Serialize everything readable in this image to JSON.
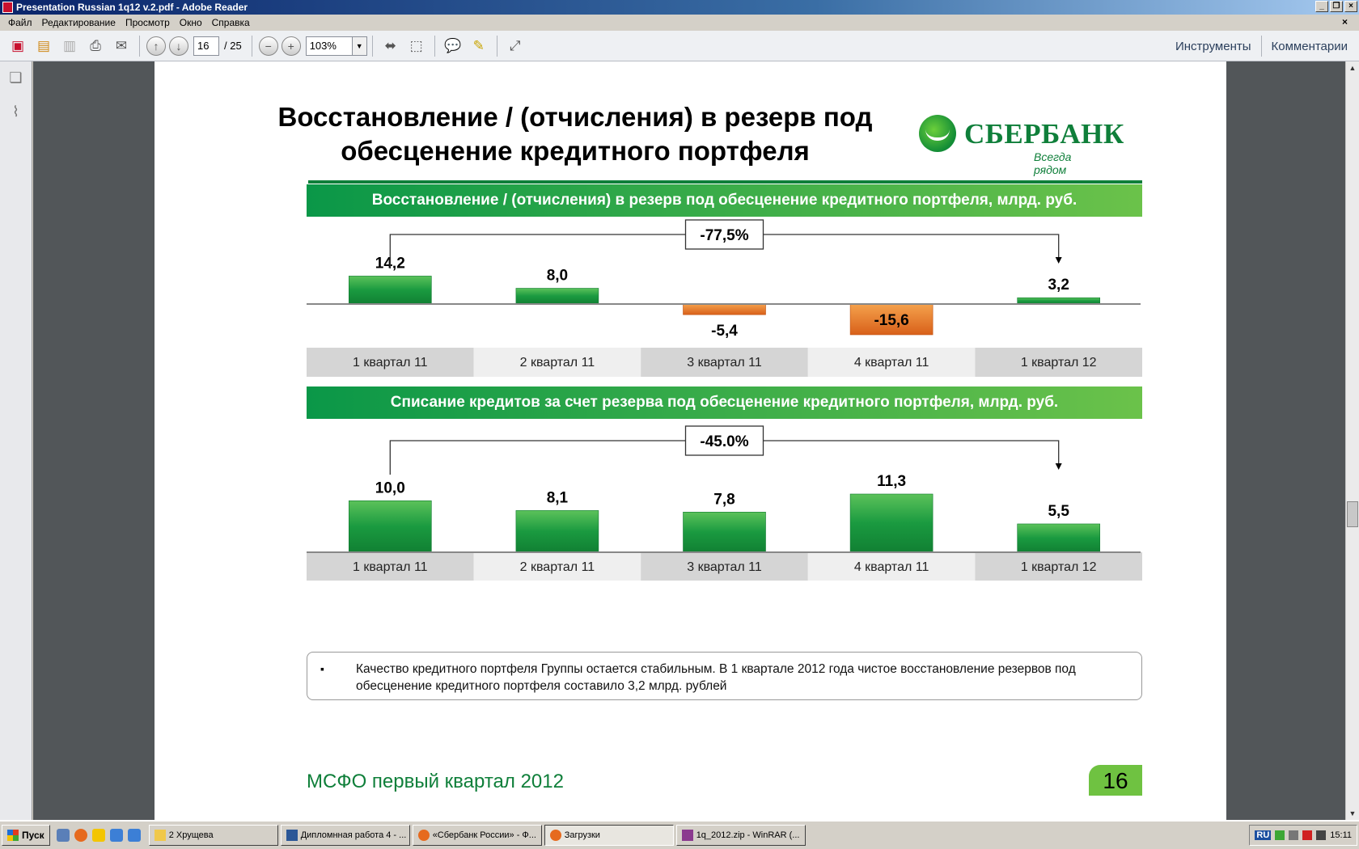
{
  "window": {
    "title": "Presentation Russian 1q12 v.2.pdf - Adobe Reader"
  },
  "menu": {
    "items": [
      "Файл",
      "Редактирование",
      "Просмотр",
      "Окно",
      "Справка"
    ]
  },
  "toolbar": {
    "page_current": "16",
    "page_total": "/ 25",
    "zoom": "103%",
    "tools_label": "Инструменты",
    "comments_label": "Комментарии"
  },
  "slide": {
    "title_line1": "Восстановление / (отчисления) в резерв под",
    "title_line2": "обесценение  кредитного портфеля",
    "logo_name": "СБЕРБАНК",
    "logo_tagline": "Всегда рядом",
    "footer": "МСФО первый квартал 2012",
    "page_number": "16",
    "note_bullet": "▪",
    "note_text": "Качество кредитного портфеля Группы остается стабильным. В 1 квартале 2012 года чистое восстановление резервов под обесценение кредитного портфеля составило 3,2 млрд. рублей",
    "colors": {
      "positive": "#1a9a40",
      "negative": "#e8782a",
      "brand": "#0f7f3a"
    }
  },
  "chart_data": [
    {
      "type": "bar",
      "title": "Восстановление / (отчисления) в резерв под обесценение кредитного портфеля, млрд. руб.",
      "categories": [
        "1 квартал 11",
        "2 квартал 11",
        "3 квартал 11",
        "4 квартал 11",
        "1 квартал 12"
      ],
      "values": [
        14.2,
        8.0,
        -5.4,
        -15.6,
        3.2
      ],
      "value_labels": [
        "14,2",
        "8,0",
        "-5,4",
        "-15,6",
        "3,2"
      ],
      "change_label": "-77,5%",
      "ylim": [
        -15.6,
        14.2
      ]
    },
    {
      "type": "bar",
      "title": "Списание кредитов за счет резерва под обесценение кредитного портфеля, млрд. руб.",
      "categories": [
        "1 квартал 11",
        "2 квартал 11",
        "3 квартал 11",
        "4 квартал 11",
        "1 квартал 12"
      ],
      "values": [
        10.0,
        8.1,
        7.8,
        11.3,
        5.5
      ],
      "value_labels": [
        "10,0",
        "8,1",
        "7,8",
        "11,3",
        "5,5"
      ],
      "change_label": "-45.0%",
      "ylim": [
        0,
        11.3
      ]
    }
  ],
  "taskbar": {
    "start_label": "Пуск",
    "tasks": [
      "2 Хрущева",
      "Дипломнная работа 4 - ...",
      "«Сбербанк России» - Ф...",
      "Загрузки",
      "1q_2012.zip - WinRAR (..."
    ],
    "lang": "RU",
    "clock": "15:11"
  }
}
